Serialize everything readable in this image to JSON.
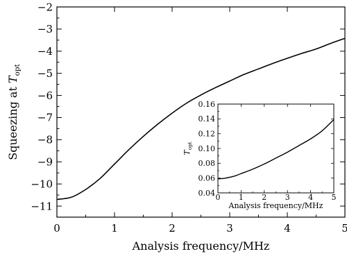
{
  "chart_data": [
    {
      "type": "line",
      "xlabel": "Analysis frequency/MHz",
      "ylabel": "Squeezing at ",
      "ylabel_math": "T",
      "ylabel_sub": "opt",
      "xlim": [
        0,
        5
      ],
      "ylim": [
        -11.5,
        -2
      ],
      "x_ticks": [
        0,
        1,
        2,
        3,
        4,
        5
      ],
      "y_ticks": [
        -11,
        -10,
        -9,
        -8,
        -7,
        -6,
        -5,
        -4,
        -3,
        -2
      ],
      "x_tick_labels": [
        "0",
        "1",
        "2",
        "3",
        "4",
        "5"
      ],
      "y_tick_labels": [
        "−11",
        "−10",
        "−9",
        "−8",
        "−7",
        "−6",
        "−5",
        "−4",
        "−3",
        "−2"
      ],
      "grid": false,
      "series": [
        {
          "x": [
            0,
            0.25,
            0.5,
            0.75,
            1.0,
            1.25,
            1.5,
            1.75,
            2.0,
            2.25,
            2.5,
            2.75,
            3.0,
            3.25,
            3.5,
            3.75,
            4.0,
            4.25,
            4.5,
            4.75,
            5.0
          ],
          "y": [
            -10.7,
            -10.6,
            -10.25,
            -9.75,
            -9.1,
            -8.45,
            -7.85,
            -7.3,
            -6.8,
            -6.35,
            -5.98,
            -5.65,
            -5.35,
            -5.05,
            -4.8,
            -4.55,
            -4.32,
            -4.1,
            -3.9,
            -3.65,
            -3.42
          ]
        }
      ],
      "line_color": "#000000"
    },
    {
      "type": "line",
      "placement": "inset",
      "xlabel": "Analysis frequency/MHz",
      "ylabel_math": "T",
      "ylabel_sub": "opt",
      "xlim": [
        0,
        5
      ],
      "ylim": [
        0.04,
        0.16
      ],
      "x_ticks": [
        0,
        1,
        2,
        3,
        4,
        5
      ],
      "y_ticks": [
        0.04,
        0.06,
        0.08,
        0.1,
        0.12,
        0.14,
        0.16
      ],
      "x_tick_labels": [
        "0",
        "1",
        "2",
        "3",
        "4",
        "5"
      ],
      "y_tick_labels": [
        "0.04",
        "0.06",
        "0.08",
        "0.10",
        "0.12",
        "0.14",
        "0.16"
      ],
      "grid": false,
      "series": [
        {
          "x": [
            0,
            0.25,
            0.5,
            0.75,
            1.0,
            1.5,
            2.0,
            2.5,
            3.0,
            3.5,
            4.0,
            4.5,
            5.0
          ],
          "y": [
            0.059,
            0.0595,
            0.061,
            0.063,
            0.066,
            0.072,
            0.079,
            0.087,
            0.095,
            0.104,
            0.113,
            0.124,
            0.139
          ]
        }
      ],
      "line_color": "#000000"
    }
  ]
}
